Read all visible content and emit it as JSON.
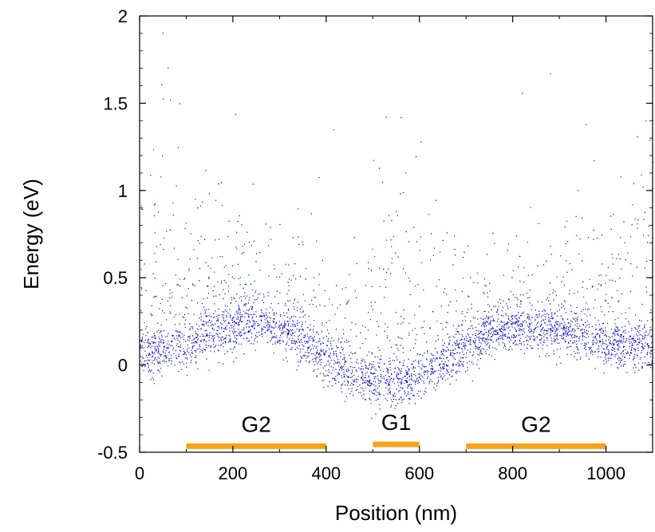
{
  "chart_data": {
    "type": "scatter",
    "title": "",
    "xlabel": "Position (nm)",
    "ylabel": "Energy (eV)",
    "xlim": [
      0,
      1100
    ],
    "ylim": [
      -0.5,
      2
    ],
    "grid": false,
    "legend": "none",
    "x_ticks": [
      {
        "value": 0,
        "label": "0"
      },
      {
        "value": 200,
        "label": "200"
      },
      {
        "value": 400,
        "label": "400"
      },
      {
        "value": 600,
        "label": "600"
      },
      {
        "value": 800,
        "label": "800"
      },
      {
        "value": 1000,
        "label": "1000"
      }
    ],
    "y_ticks": [
      {
        "value": -0.5,
        "label": "-0.5"
      },
      {
        "value": 0,
        "label": "0"
      },
      {
        "value": 0.5,
        "label": "0.5"
      },
      {
        "value": 1,
        "label": "1"
      },
      {
        "value": 1.5,
        "label": "1.5"
      },
      {
        "value": 2,
        "label": "2"
      }
    ],
    "series": [
      {
        "color": "#0000cc",
        "marker": "dot",
        "profile_x": [
          0,
          50,
          100,
          150,
          200,
          250,
          300,
          350,
          400,
          450,
          500,
          550,
          600,
          650,
          700,
          750,
          800,
          850,
          900,
          950,
          1000,
          1050,
          1100
        ],
        "profile_y": [
          0.1,
          0.1,
          0.12,
          0.18,
          0.23,
          0.25,
          0.22,
          0.14,
          0.04,
          -0.04,
          -0.08,
          -0.09,
          -0.06,
          0.02,
          0.12,
          0.2,
          0.23,
          0.22,
          0.2,
          0.17,
          0.14,
          0.12,
          0.11
        ],
        "sample_points": [
          {
            "x": 65,
            "y": 1.52
          },
          {
            "x": 85,
            "y": 1.5
          },
          {
            "x": 205,
            "y": 1.44
          },
          {
            "x": 415,
            "y": 1.35
          },
          {
            "x": 820,
            "y": 1.56
          },
          {
            "x": 880,
            "y": 1.67
          },
          {
            "x": 957,
            "y": 1.38
          },
          {
            "x": 1085,
            "y": 1.4
          },
          {
            "x": 560,
            "y": 1.42
          }
        ]
      }
    ],
    "gates": [
      {
        "label": "G2",
        "x_start": 100,
        "x_end": 400,
        "y": -0.465,
        "color": "#f5a31a"
      },
      {
        "label": "G1",
        "x_start": 500,
        "x_end": 600,
        "y": -0.455,
        "color": "#f5a31a"
      },
      {
        "label": "G2",
        "x_start": 700,
        "x_end": 1000,
        "y": -0.465,
        "color": "#f5a31a"
      }
    ]
  }
}
